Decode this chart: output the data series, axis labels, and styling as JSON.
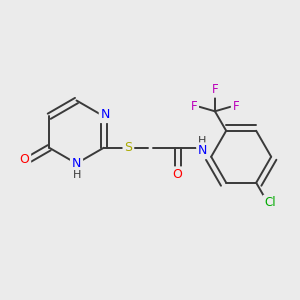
{
  "background_color": "#EBEBEB",
  "bond_color": "#3a3a3a",
  "bond_width": 1.4,
  "atom_colors": {
    "N": "#0000FF",
    "O": "#FF0000",
    "S": "#AAAA00",
    "F": "#BB00BB",
    "Cl": "#00AA00",
    "C": "#3a3a3a",
    "H": "#3a3a3a"
  },
  "font_size": 8.5,
  "figsize": [
    3.0,
    3.0
  ],
  "dpi": 100
}
